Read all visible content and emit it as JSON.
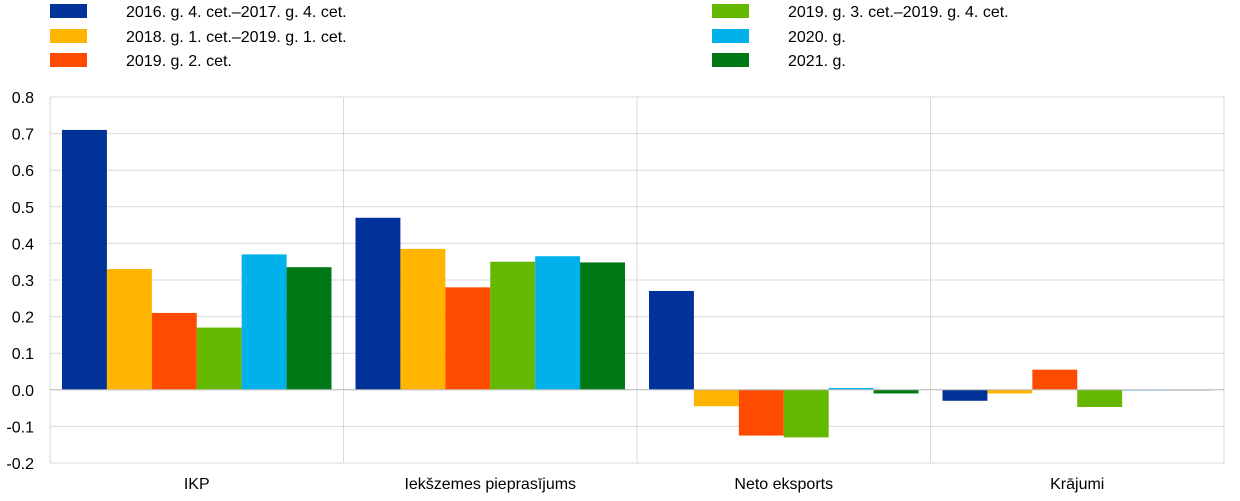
{
  "chart_data": {
    "type": "bar",
    "title": "",
    "xlabel": "",
    "ylabel": "",
    "ylim": [
      -0.2,
      0.8
    ],
    "yticks": [
      "0.8",
      "0.7",
      "0.6",
      "0.5",
      "0.4",
      "0.3",
      "0.2",
      "0.1",
      "0.0",
      "-0.1",
      "-0.2"
    ],
    "ytick_values": [
      0.8,
      0.7,
      0.6,
      0.5,
      0.4,
      0.3,
      0.2,
      0.1,
      0.0,
      -0.1,
      -0.2
    ],
    "grid": true,
    "legend_position": "top",
    "categories": [
      "IKP",
      "Iekšzemes pieprasījums",
      "Neto eksports",
      "Krājumi"
    ],
    "series": [
      {
        "name": "2016. g. 4. cet.–2017. g. 4. cet.",
        "color": "#003299",
        "values": [
          0.71,
          0.47,
          0.27,
          -0.03
        ]
      },
      {
        "name": "2018. g. 1. cet.–2019. g. 1. cet.",
        "color": "#FFB400",
        "values": [
          0.33,
          0.385,
          -0.045,
          -0.01
        ]
      },
      {
        "name": "2019. g. 2. cet.",
        "color": "#FF4B00",
        "values": [
          0.21,
          0.28,
          -0.125,
          0.055
        ]
      },
      {
        "name": "2019. g. 3. cet.–2019. g. 4. cet.",
        "color": "#65B800",
        "values": [
          0.17,
          0.35,
          -0.13,
          -0.047
        ]
      },
      {
        "name": "2020. g.",
        "color": "#00B1EA",
        "values": [
          0.37,
          0.365,
          0.005,
          -0.002
        ]
      },
      {
        "name": "2021. g.",
        "color": "#007816",
        "values": [
          0.335,
          0.348,
          -0.01,
          0.0
        ]
      }
    ]
  }
}
